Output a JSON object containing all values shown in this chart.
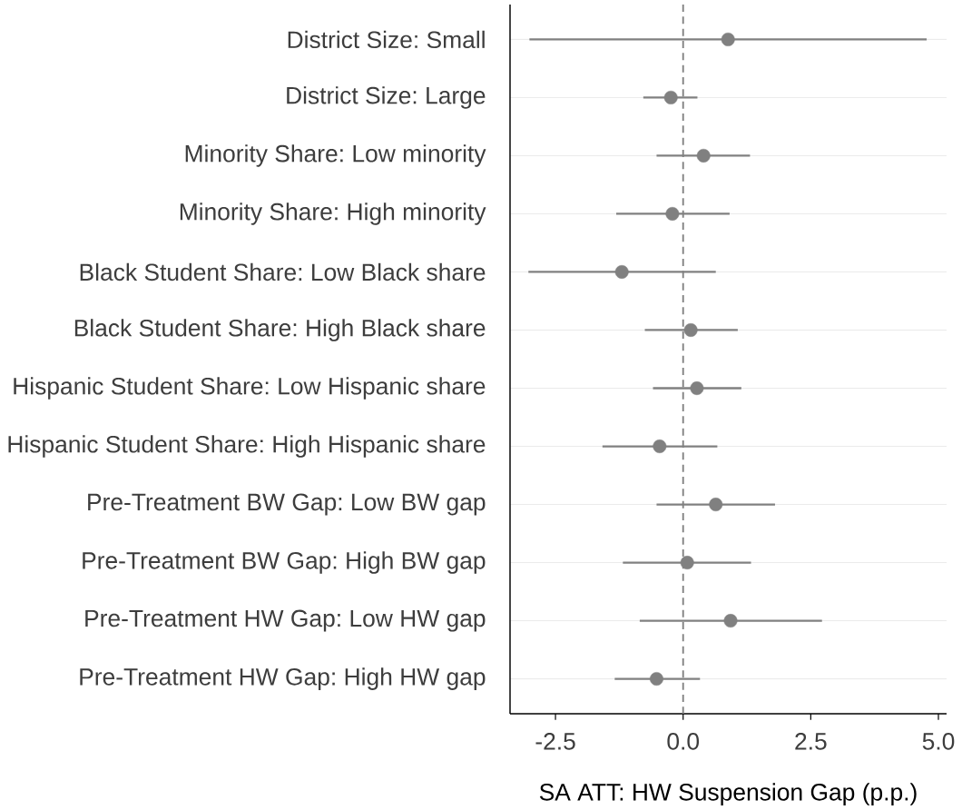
{
  "chart_data": {
    "type": "scatter",
    "orientation": "horizontal",
    "xlabel": "SA ATT: HW Suspension Gap (p.p.)",
    "categories": [
      "District Size: Small",
      "District Size: Large",
      "Minority Share: Low minority",
      "Minority Share: High minority",
      "Black Student Share: Low Black share",
      "Black Student Share: High Black share",
      "Hispanic Student Share: Low Hispanic share",
      "Hispanic Student Share: High Hispanic share",
      "Pre-Treatment BW Gap: Low BW gap",
      "Pre-Treatment BW Gap: High BW gap",
      "Pre-Treatment HW Gap: Low HW gap",
      "Pre-Treatment HW Gap: High HW gap"
    ],
    "values": [
      0.88,
      -0.24,
      0.4,
      -0.21,
      -1.2,
      0.15,
      0.27,
      -0.46,
      0.64,
      0.08,
      0.93,
      -0.52
    ],
    "errors": [
      [
        -3.01,
        4.77
      ],
      [
        -0.78,
        0.28
      ],
      [
        -0.52,
        1.31
      ],
      [
        -1.31,
        0.91
      ],
      [
        -3.03,
        0.64
      ],
      [
        -0.75,
        1.07
      ],
      [
        -0.59,
        1.14
      ],
      [
        -1.58,
        0.67
      ],
      [
        -0.52,
        1.8
      ],
      [
        -1.18,
        1.33
      ],
      [
        -0.85,
        2.72
      ],
      [
        -1.34,
        0.33
      ]
    ],
    "color": "#808080",
    "marker": "circle",
    "grid": "y",
    "xlim": [
      -3.39,
      5.16
    ],
    "xticks": [
      {
        "value": -2.5,
        "label": "-2.5"
      },
      {
        "value": 0,
        "label": "0.0"
      },
      {
        "value": 2.5,
        "label": "2.5"
      },
      {
        "value": 5,
        "label": "5.0"
      }
    ],
    "ref_lines": [
      {
        "axis": "x",
        "value": 0,
        "color": "#808080",
        "line_style": "dashed"
      }
    ]
  }
}
